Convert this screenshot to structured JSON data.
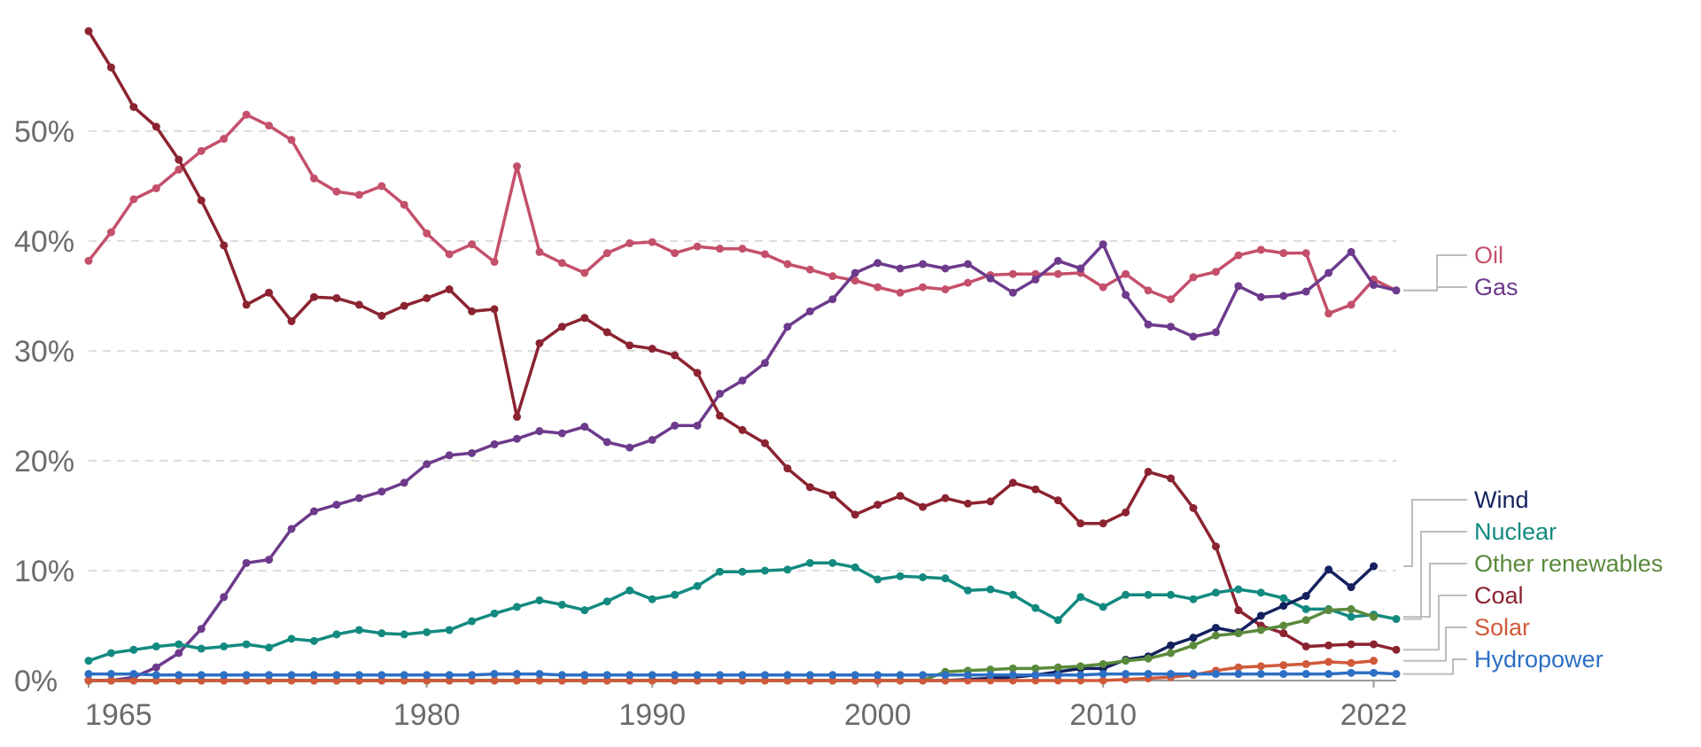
{
  "chart_data": {
    "type": "line",
    "x": [
      1965,
      1966,
      1967,
      1968,
      1969,
      1970,
      1971,
      1972,
      1973,
      1974,
      1975,
      1976,
      1977,
      1978,
      1979,
      1980,
      1981,
      1982,
      1983,
      1984,
      1985,
      1986,
      1987,
      1988,
      1989,
      1990,
      1991,
      1992,
      1993,
      1994,
      1995,
      1996,
      1997,
      1998,
      1999,
      2000,
      2001,
      2002,
      2003,
      2004,
      2005,
      2006,
      2007,
      2008,
      2009,
      2010,
      2011,
      2012,
      2013,
      2014,
      2015,
      2016,
      2017,
      2018,
      2019,
      2020,
      2021,
      2022,
      2023
    ],
    "xlim": [
      1965,
      2023
    ],
    "ylim": [
      0,
      60
    ],
    "x_ticks": [
      1965,
      1980,
      1990,
      2000,
      2010,
      2022
    ],
    "y_ticks": [
      0,
      10,
      20,
      30,
      40,
      50
    ],
    "y_tick_labels": [
      "0%",
      "10%",
      "20%",
      "30%",
      "40%",
      "50%"
    ],
    "legend_placement": "right-end labels",
    "grid": true,
    "series": [
      {
        "name": "Oil",
        "color": "#c4506b",
        "values": [
          38.2,
          40.8,
          43.8,
          44.8,
          46.5,
          48.2,
          49.3,
          51.5,
          50.5,
          49.2,
          45.7,
          44.5,
          44.2,
          45.0,
          43.3,
          40.7,
          38.8,
          39.7,
          38.1,
          46.8,
          39.0,
          38.0,
          37.1,
          38.9,
          39.8,
          39.9,
          38.9,
          39.5,
          39.3,
          39.3,
          38.8,
          37.9,
          37.4,
          36.8,
          36.4,
          35.8,
          35.3,
          35.8,
          35.6,
          36.2,
          36.9,
          37.0,
          37.0,
          37.0,
          37.1,
          35.8,
          37.0,
          35.5,
          34.7,
          36.7,
          37.2,
          38.7,
          39.2,
          38.9,
          38.9,
          33.4,
          34.2,
          36.5,
          35.5
        ]
      },
      {
        "name": "Gas",
        "color": "#6d3a8c",
        "values": [
          0.0,
          0.0,
          0.3,
          1.2,
          2.5,
          4.7,
          7.6,
          10.7,
          11.0,
          13.8,
          15.4,
          16.0,
          16.6,
          17.2,
          18.0,
          19.7,
          20.5,
          20.7,
          21.5,
          22.0,
          22.7,
          22.5,
          23.1,
          21.7,
          21.2,
          21.9,
          23.2,
          23.2,
          26.1,
          27.3,
          28.9,
          32.2,
          33.6,
          34.7,
          37.1,
          38.0,
          37.5,
          37.9,
          37.5,
          37.9,
          36.6,
          35.3,
          36.5,
          38.2,
          37.5,
          39.7,
          35.1,
          32.4,
          32.2,
          31.3,
          31.7,
          35.9,
          34.9,
          35.0,
          35.4,
          37.1,
          39.0,
          36.0,
          35.5
        ]
      },
      {
        "name": "Coal",
        "color": "#8b2331",
        "values": [
          59.1,
          55.8,
          52.2,
          50.4,
          47.4,
          43.7,
          39.6,
          34.2,
          35.3,
          32.7,
          34.9,
          34.8,
          34.2,
          33.2,
          34.1,
          34.8,
          35.6,
          33.6,
          33.8,
          24.0,
          30.7,
          32.2,
          33.0,
          31.7,
          30.5,
          30.2,
          29.6,
          28.0,
          24.1,
          22.8,
          21.6,
          19.3,
          17.6,
          16.9,
          15.1,
          16.0,
          16.8,
          15.8,
          16.6,
          16.1,
          16.3,
          18.0,
          17.4,
          16.4,
          14.3,
          14.3,
          15.3,
          19.0,
          18.4,
          15.7,
          12.2,
          6.4,
          5.0,
          4.3,
          3.1,
          3.2,
          3.3,
          3.3,
          2.8
        ]
      },
      {
        "name": "Nuclear",
        "color": "#138a80",
        "values": [
          1.8,
          2.5,
          2.8,
          3.1,
          3.3,
          2.9,
          3.1,
          3.3,
          3.0,
          3.8,
          3.6,
          4.2,
          4.6,
          4.3,
          4.2,
          4.4,
          4.6,
          5.4,
          6.1,
          6.7,
          7.3,
          6.9,
          6.4,
          7.2,
          8.2,
          7.4,
          7.8,
          8.6,
          9.9,
          9.9,
          10.0,
          10.1,
          10.7,
          10.7,
          10.3,
          9.2,
          9.5,
          9.4,
          9.3,
          8.2,
          8.3,
          7.8,
          6.6,
          5.5,
          7.6,
          6.7,
          7.8,
          7.8,
          7.8,
          7.4,
          8.0,
          8.3,
          8.0,
          7.5,
          6.5,
          6.5,
          5.8,
          6.0,
          5.6
        ]
      },
      {
        "name": "Wind",
        "color": "#14215e",
        "values": [
          0,
          0,
          0,
          0,
          0,
          0,
          0,
          0,
          0,
          0,
          0,
          0,
          0,
          0,
          0,
          0,
          0,
          0,
          0,
          0,
          0,
          0,
          0,
          0,
          0,
          0,
          0,
          0,
          0,
          0,
          0,
          0,
          0,
          0,
          0,
          0,
          0,
          0,
          0,
          0.1,
          0.2,
          0.3,
          0.5,
          0.8,
          1.1,
          1.1,
          1.9,
          2.2,
          3.2,
          3.9,
          4.8,
          4.4,
          5.9,
          6.8,
          7.7,
          10.1,
          8.5,
          10.4,
          null
        ]
      },
      {
        "name": "Other renewables",
        "color": "#5a8a3c",
        "values": [
          0,
          0,
          0,
          0,
          0,
          0,
          0,
          0,
          0,
          0,
          0,
          0,
          0,
          0,
          0,
          0,
          0,
          0,
          0,
          0,
          0,
          0,
          0,
          0,
          0,
          0,
          0,
          0,
          0,
          0,
          0,
          0,
          0,
          0,
          0,
          0,
          0,
          0,
          0.8,
          0.9,
          1.0,
          1.1,
          1.1,
          1.2,
          1.3,
          1.5,
          1.8,
          2.0,
          2.5,
          3.2,
          4.1,
          4.3,
          4.6,
          5.0,
          5.5,
          6.4,
          6.5,
          5.8,
          null
        ]
      },
      {
        "name": "Solar",
        "color": "#d05a3a",
        "values": [
          0,
          0,
          0,
          0,
          0,
          0,
          0,
          0,
          0,
          0,
          0,
          0,
          0,
          0,
          0,
          0,
          0,
          0,
          0,
          0,
          0,
          0,
          0,
          0,
          0,
          0,
          0,
          0,
          0,
          0,
          0,
          0,
          0,
          0,
          0,
          0,
          0,
          0,
          0,
          0,
          0,
          0,
          0,
          0,
          0,
          0,
          0.1,
          0.2,
          0.3,
          0.5,
          0.9,
          1.2,
          1.3,
          1.4,
          1.5,
          1.7,
          1.6,
          1.8,
          null
        ]
      },
      {
        "name": "Hydropower",
        "color": "#2d6fc4",
        "values": [
          0.6,
          0.6,
          0.6,
          0.5,
          0.5,
          0.5,
          0.5,
          0.5,
          0.5,
          0.5,
          0.5,
          0.5,
          0.5,
          0.5,
          0.5,
          0.5,
          0.5,
          0.5,
          0.6,
          0.6,
          0.6,
          0.5,
          0.5,
          0.5,
          0.5,
          0.5,
          0.5,
          0.5,
          0.5,
          0.5,
          0.5,
          0.5,
          0.5,
          0.5,
          0.5,
          0.5,
          0.5,
          0.5,
          0.5,
          0.5,
          0.5,
          0.5,
          0.5,
          0.5,
          0.5,
          0.6,
          0.6,
          0.6,
          0.6,
          0.6,
          0.6,
          0.6,
          0.6,
          0.6,
          0.6,
          0.6,
          0.7,
          0.7,
          0.6
        ]
      }
    ]
  }
}
